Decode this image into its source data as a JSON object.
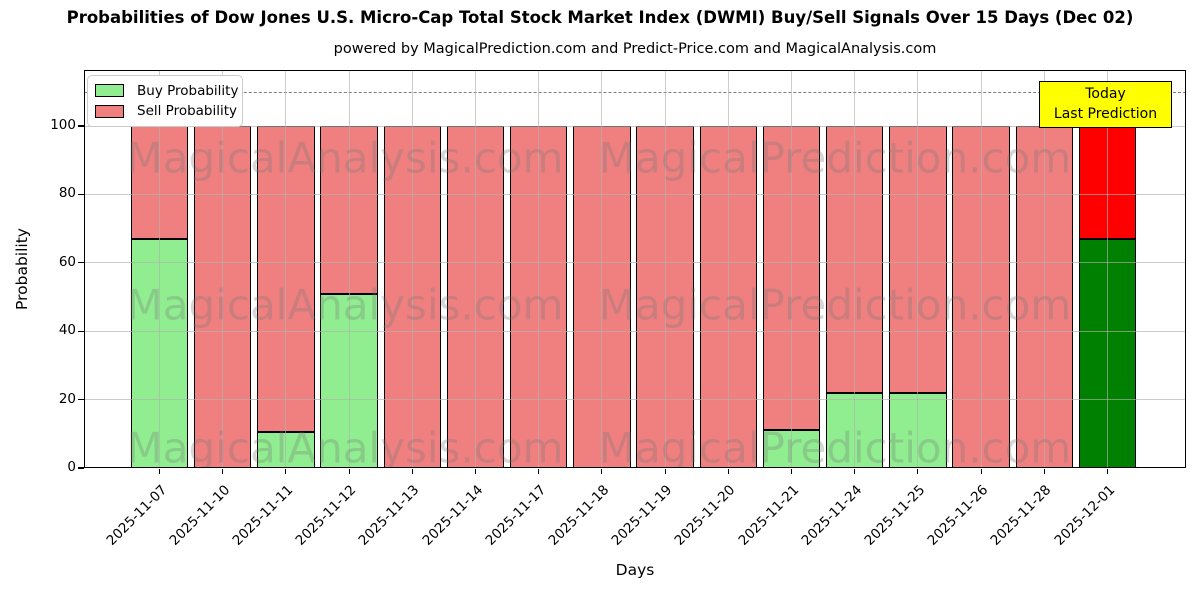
{
  "page": {
    "title": "Probabilities of Dow Jones U.S. Micro-Cap Total Stock Market Index (DWMI) Buy/Sell Signals Over 15 Days (Dec 02)",
    "subtitle": "powered by MagicalPrediction.com and Predict-Price.com and MagicalAnalysis.com"
  },
  "chart_data": {
    "type": "bar",
    "stacked": true,
    "title": "Probabilities of Dow Jones U.S. Micro-Cap Total Stock Market Index (DWMI) Buy/Sell Signals Over 15 Days (Dec 02)",
    "subtitle": "powered by MagicalPrediction.com and Predict-Price.com and MagicalAnalysis.com",
    "xlabel": "Days",
    "ylabel": "Probability",
    "categories": [
      "2025-11-07",
      "2025-11-10",
      "2025-11-11",
      "2025-11-12",
      "2025-11-13",
      "2025-11-14",
      "2025-11-17",
      "2025-11-18",
      "2025-11-19",
      "2025-11-20",
      "2025-11-21",
      "2025-11-24",
      "2025-11-25",
      "2025-11-26",
      "2025-11-28",
      "2025-12-01"
    ],
    "series": [
      {
        "name": "Buy Probability",
        "color": "#90ee90",
        "values": [
          67,
          0,
          10.5,
          51,
          0,
          0,
          0,
          0,
          0,
          0,
          11,
          22,
          22,
          0,
          0,
          67
        ]
      },
      {
        "name": "Sell Probability",
        "color": "#f08080",
        "values": [
          33,
          100,
          89.5,
          49,
          100,
          100,
          100,
          100,
          100,
          100,
          89,
          78,
          78,
          100,
          100,
          33
        ]
      }
    ],
    "today": {
      "index": 15,
      "buy_color": "#008000",
      "sell_color": "#ff0000"
    },
    "yticks": [
      0,
      20,
      40,
      60,
      80,
      100
    ],
    "ylim": [
      0,
      116.4
    ],
    "dashed_line_y": 110,
    "grid": true,
    "legend_position": "upper-left"
  },
  "legend": {
    "items": [
      {
        "label": "Buy Probability",
        "color": "#90ee90"
      },
      {
        "label": "Sell Probability",
        "color": "#f08080"
      }
    ]
  },
  "annotation": {
    "lines": [
      "Today",
      "Last Prediction"
    ],
    "bg_color": "#ffff00"
  },
  "watermarks": {
    "left_text": "MagicalAnalysis.com",
    "right_text": "MagicalPrediction.com"
  }
}
